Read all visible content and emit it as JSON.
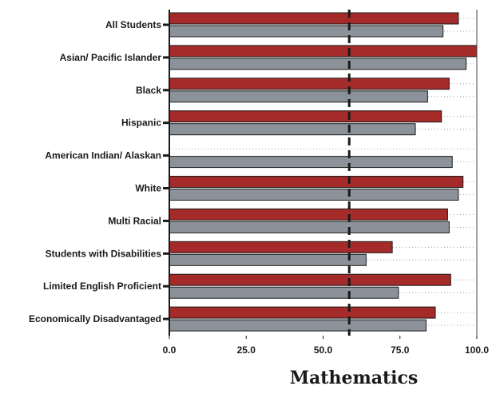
{
  "chart_data": {
    "type": "bar",
    "orientation": "horizontal",
    "title": "Mathematics",
    "categories": [
      "All Students",
      "Asian/ Pacific Islander",
      "Black",
      "Hispanic",
      "American Indian/ Alaskan",
      "White",
      "Multi Racial",
      "Students with Disabilities",
      "Limited English Proficient",
      "Economically Disadvantaged"
    ],
    "series": [
      {
        "color": "#a52a2a",
        "values": [
          94.0,
          100.0,
          91.0,
          88.5,
          null,
          95.5,
          90.5,
          72.5,
          91.5,
          86.5
        ]
      },
      {
        "color": "#8c9299",
        "values": [
          89.0,
          96.5,
          84.0,
          80.0,
          92.0,
          94.0,
          91.0,
          64.0,
          74.5,
          83.5
        ]
      }
    ],
    "xlim": [
      0,
      100
    ],
    "xticks": [
      "0.0",
      "25.0",
      "50.0",
      "75.0",
      "100.0"
    ],
    "reference_line": 58.5,
    "grid": "dotted horizontal"
  }
}
